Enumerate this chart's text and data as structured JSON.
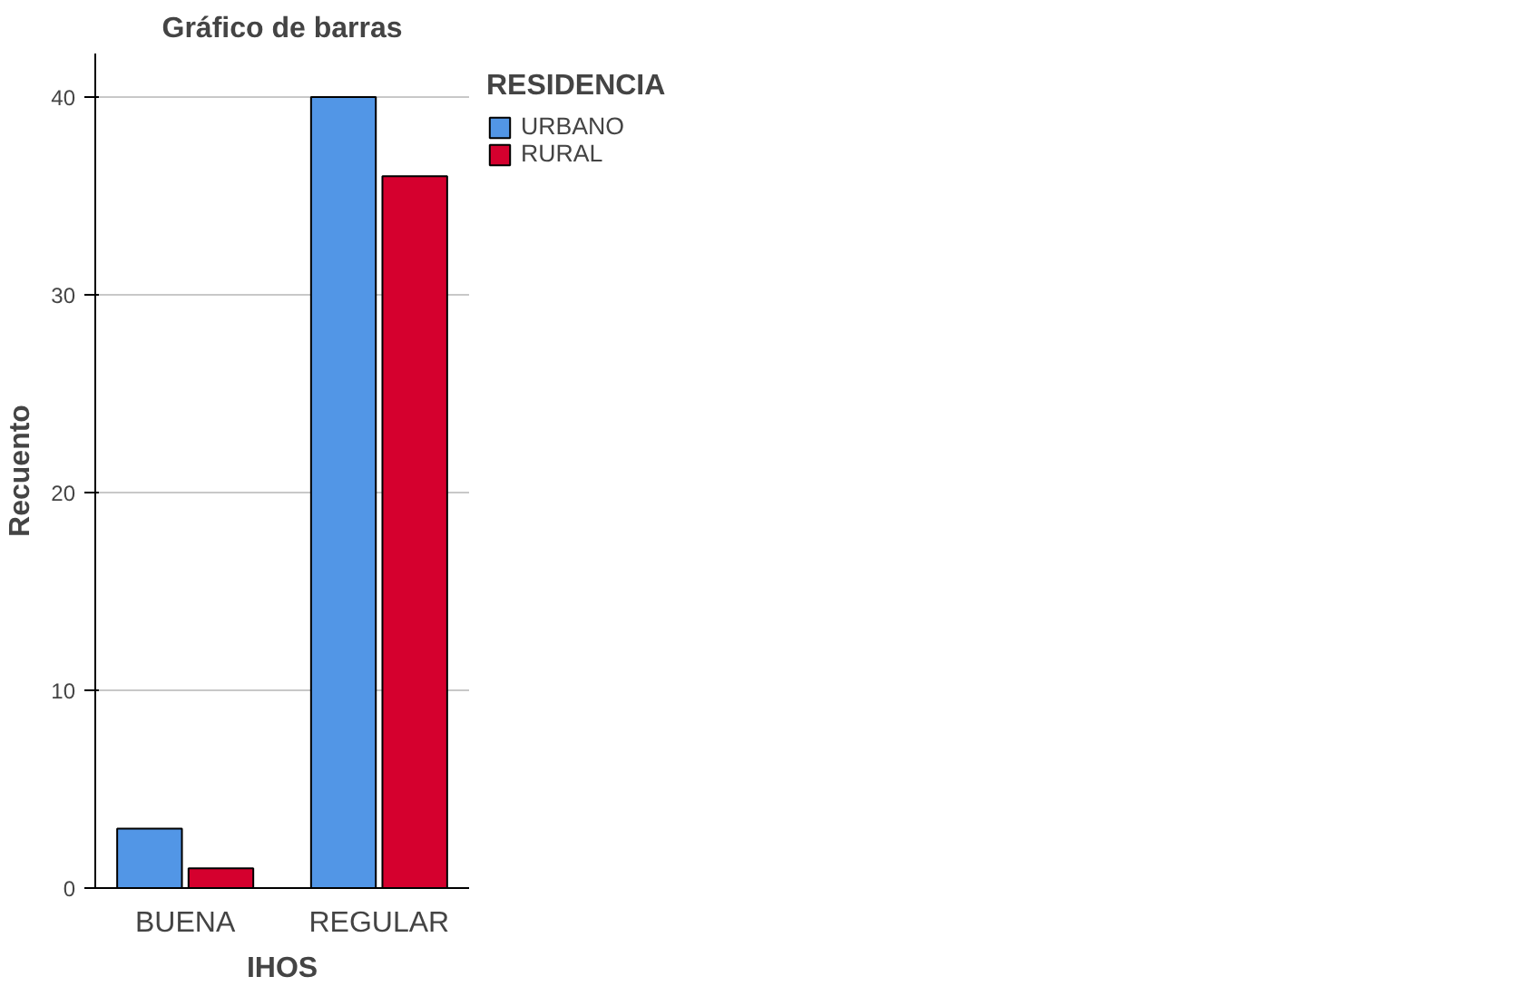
{
  "chart_data": {
    "type": "bar",
    "title": "Gráfico de barras",
    "xlabel": "IHOS",
    "ylabel": "Recuento",
    "legend_title": "RESIDENCIA",
    "categories": [
      "BUENA",
      "REGULAR"
    ],
    "series": [
      {
        "name": "URBANO",
        "color": "#5296e6",
        "values": [
          3,
          40
        ]
      },
      {
        "name": "RURAL",
        "color": "#d5002e",
        "values": [
          1,
          36
        ]
      }
    ],
    "ylim": [
      0,
      42.2
    ],
    "yticks": [
      0,
      10,
      20,
      30,
      40
    ],
    "grid": "y",
    "legend": "right"
  }
}
